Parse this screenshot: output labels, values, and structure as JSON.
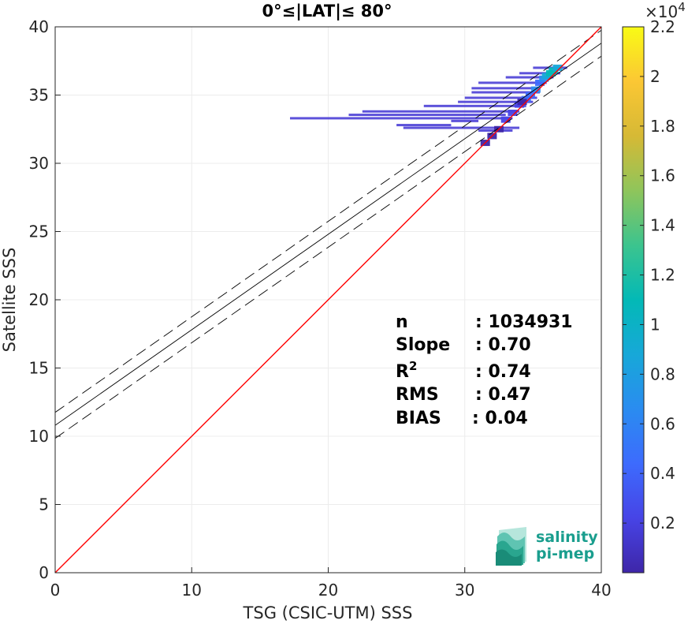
{
  "chart_data": {
    "type": "heatmap",
    "title": "0°≤|LAT|≤ 80°",
    "xlabel": "TSG (CSIC-UTM) SSS",
    "ylabel": "Satellite SSS",
    "xlim": [
      0,
      40
    ],
    "ylim": [
      0,
      40
    ],
    "xticks": [
      "0",
      "10",
      "20",
      "30",
      "40"
    ],
    "yticks": [
      "0",
      "5",
      "10",
      "15",
      "20",
      "25",
      "30",
      "35",
      "40"
    ],
    "grid": true,
    "identity_line": {
      "slope": 1,
      "intercept": 0,
      "color": "#ff0000"
    },
    "fit_line": {
      "slope": 0.7,
      "intercept": 10.8,
      "color": "#000000"
    },
    "fit_bounds": [
      {
        "slope": 0.7,
        "intercept": 11.75
      },
      {
        "slope": 0.7,
        "intercept": 9.85
      }
    ],
    "stats": [
      {
        "label": "n",
        "value": ": 1034931"
      },
      {
        "label": "Slope",
        "value": ": 0.70"
      },
      {
        "label": "R",
        "sup": "2",
        "value": ": 0.74"
      },
      {
        "label": "RMS",
        "value": ": 0.47"
      },
      {
        "label": "BIAS",
        "value": ": 0.04"
      }
    ],
    "colorbar": {
      "min": 0,
      "max": 2.2,
      "multiplier": "×10",
      "exponent": "4",
      "ticks": [
        "0.2",
        "0.4",
        "0.6",
        "0.8",
        "1",
        "1.2",
        "1.4",
        "1.6",
        "1.8",
        "2",
        "2.2"
      ],
      "colormap": "parula"
    },
    "density_streaks": [
      {
        "x0": 17.2,
        "x1": 33.5,
        "y": 33.3
      },
      {
        "x0": 21.5,
        "x1": 33.0,
        "y": 33.55
      },
      {
        "x0": 22.5,
        "x1": 34.0,
        "y": 33.8
      },
      {
        "x0": 25.0,
        "x1": 29.0,
        "y": 32.8
      },
      {
        "x0": 25.5,
        "x1": 34.0,
        "y": 32.6
      },
      {
        "x0": 27.0,
        "x1": 34.5,
        "y": 34.2
      },
      {
        "x0": 29.5,
        "x1": 35.0,
        "y": 34.5
      },
      {
        "x0": 30.0,
        "x1": 35.3,
        "y": 34.8
      },
      {
        "x0": 30.5,
        "x1": 35.5,
        "y": 35.2
      },
      {
        "x0": 30.5,
        "x1": 35.5,
        "y": 35.5
      },
      {
        "x0": 31.0,
        "x1": 36.0,
        "y": 35.9
      },
      {
        "x0": 33.0,
        "x1": 36.5,
        "y": 36.3
      },
      {
        "x0": 34.0,
        "x1": 37.0,
        "y": 36.6
      },
      {
        "x0": 35.0,
        "x1": 37.5,
        "y": 37.0
      },
      {
        "x0": 31.0,
        "x1": 33.5,
        "y": 32.4
      },
      {
        "x0": 29.0,
        "x1": 31.0,
        "y": 33.1
      }
    ],
    "density_core": [
      {
        "x": 35.5,
        "y": 35.9,
        "v": 0.25
      },
      {
        "x": 35.8,
        "y": 36.2,
        "v": 0.35
      },
      {
        "x": 36.0,
        "y": 36.4,
        "v": 0.45
      },
      {
        "x": 36.3,
        "y": 36.6,
        "v": 0.55
      },
      {
        "x": 36.5,
        "y": 36.8,
        "v": 0.5
      },
      {
        "x": 36.8,
        "y": 37.0,
        "v": 0.4
      },
      {
        "x": 35.2,
        "y": 35.4,
        "v": 0.3
      },
      {
        "x": 34.8,
        "y": 35.0,
        "v": 0.25
      },
      {
        "x": 34.5,
        "y": 34.7,
        "v": 0.2
      },
      {
        "x": 34.0,
        "y": 34.3,
        "v": 0.15
      },
      {
        "x": 33.5,
        "y": 33.7,
        "v": 0.12
      },
      {
        "x": 33.0,
        "y": 33.2,
        "v": 0.1
      },
      {
        "x": 32.5,
        "y": 32.5,
        "v": 0.08
      },
      {
        "x": 32.0,
        "y": 32.0,
        "v": 0.08
      },
      {
        "x": 31.5,
        "y": 31.5,
        "v": 0.06
      },
      {
        "x": 34.2,
        "y": 34.5,
        "v": 0.08
      }
    ]
  },
  "logo": {
    "line1": "salinity",
    "line2": "pi-mep"
  }
}
